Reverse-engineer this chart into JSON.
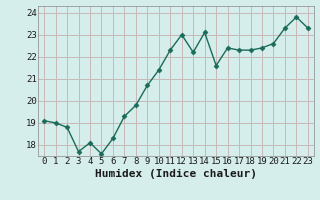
{
  "x": [
    0,
    1,
    2,
    3,
    4,
    5,
    6,
    7,
    8,
    9,
    10,
    11,
    12,
    13,
    14,
    15,
    16,
    17,
    18,
    19,
    20,
    21,
    22,
    23
  ],
  "y": [
    19.1,
    19.0,
    18.8,
    17.7,
    18.1,
    17.6,
    18.3,
    19.3,
    19.8,
    20.7,
    21.4,
    22.3,
    23.0,
    22.2,
    23.1,
    21.6,
    22.4,
    22.3,
    22.3,
    22.4,
    22.6,
    23.3,
    23.8,
    23.3
  ],
  "line_color": "#1a6b5a",
  "marker": "D",
  "marker_size": 2.5,
  "bg_color": "#d6eeeb",
  "plot_bg_color": "#d6eeeb",
  "grid_color": "#c8b8b8",
  "xlabel": "Humidex (Indice chaleur)",
  "ylim": [
    17.5,
    24.3
  ],
  "xlim": [
    -0.5,
    23.5
  ],
  "yticks": [
    18,
    19,
    20,
    21,
    22,
    23,
    24
  ],
  "xticks": [
    0,
    1,
    2,
    3,
    4,
    5,
    6,
    7,
    8,
    9,
    10,
    11,
    12,
    13,
    14,
    15,
    16,
    17,
    18,
    19,
    20,
    21,
    22,
    23
  ],
  "tick_label_fontsize": 6.5,
  "xlabel_fontsize": 8,
  "linewidth": 1.0
}
